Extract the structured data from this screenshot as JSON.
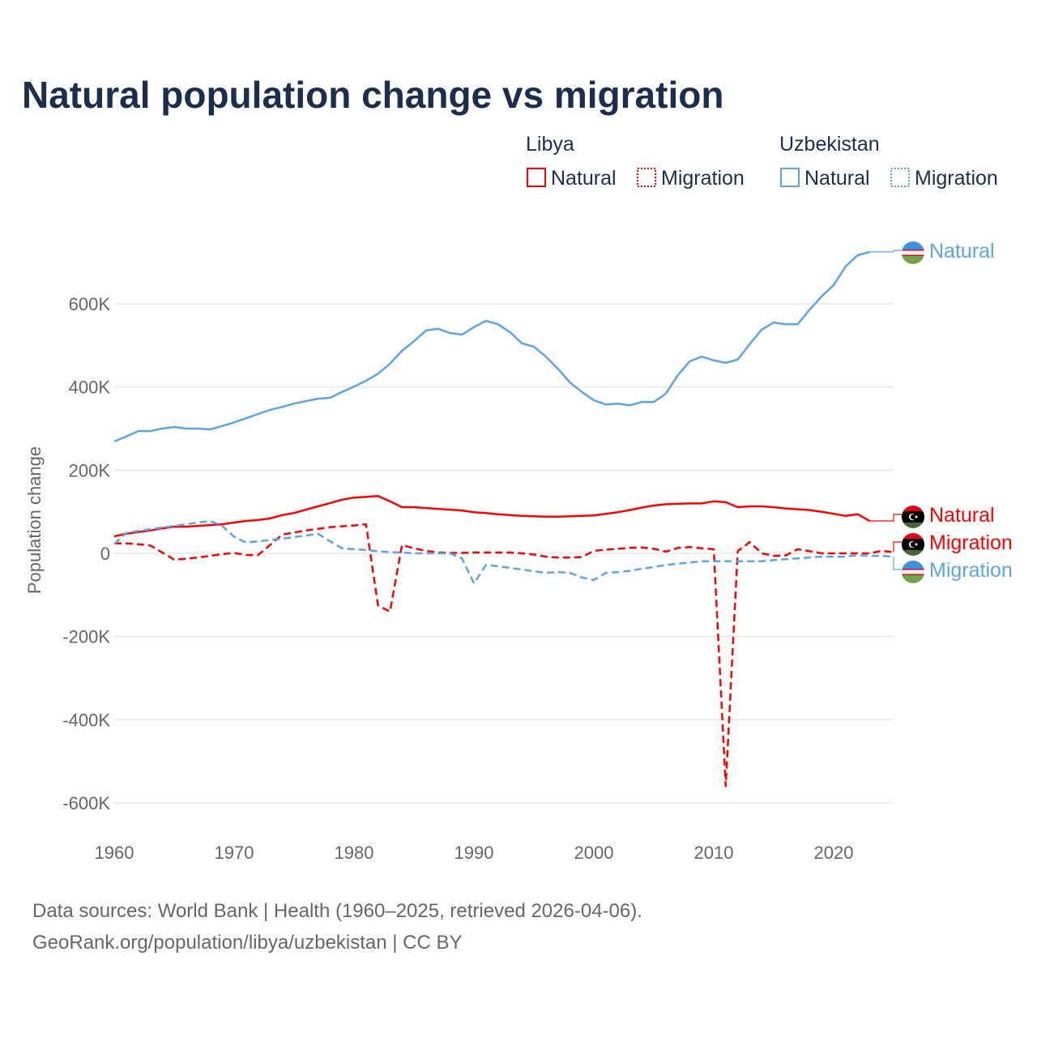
{
  "chart_data": {
    "type": "line",
    "title": "Natural population change vs migration",
    "xlabel": "",
    "ylabel": "Population change",
    "xlim": [
      1960,
      2025
    ],
    "ylim": [
      -650000,
      750000
    ],
    "x_ticks": [
      "1960",
      "1970",
      "1980",
      "1990",
      "2000",
      "2010",
      "2020"
    ],
    "y_ticks": [
      {
        "v": 600,
        "label": "600K"
      },
      {
        "v": 400,
        "label": "400K"
      },
      {
        "v": 200,
        "label": "200K"
      },
      {
        "v": 0,
        "label": "0"
      },
      {
        "v": -200,
        "label": "-200K"
      },
      {
        "v": -400,
        "label": "-400K"
      },
      {
        "v": -600,
        "label": "-600K"
      }
    ],
    "units": "thousands",
    "grid": true,
    "legend": {
      "groups": [
        {
          "country": "Libya",
          "items": [
            "Natural",
            "Migration"
          ]
        },
        {
          "country": "Uzbekistan",
          "items": [
            "Natural",
            "Migration"
          ]
        }
      ],
      "placement": "top-right"
    },
    "series": [
      {
        "name": "Uzbekistan Natural",
        "label": "Natural",
        "color": "#5ba4e8",
        "dash": false,
        "start": 1960,
        "values": [
          269,
          281,
          294,
          294,
          300,
          304,
          300,
          300,
          298,
          306,
          315,
          325,
          335,
          345,
          352,
          360,
          366,
          372,
          374,
          388,
          401,
          415,
          432,
          456,
          487,
          510,
          536,
          540,
          530,
          526,
          544,
          559,
          551,
          532,
          505,
          497,
          473,
          444,
          411,
          388,
          368,
          358,
          360,
          356,
          364,
          364,
          384,
          428,
          462,
          473,
          464,
          458,
          466,
          503,
          538,
          555,
          551,
          551,
          586,
          618,
          645,
          690,
          717,
          725
        ]
      },
      {
        "name": "Libya Natural",
        "label": "Natural",
        "color": "#ff0000",
        "dash": false,
        "start": 1960,
        "values": [
          41,
          47,
          51,
          55,
          60,
          64,
          64,
          66,
          68,
          70,
          74,
          78,
          80,
          84,
          92,
          97,
          105,
          113,
          121,
          129,
          134,
          136,
          138,
          125,
          111,
          111,
          109,
          107,
          105,
          103,
          99,
          97,
          94,
          92,
          90,
          89,
          88,
          88,
          89,
          90,
          91,
          95,
          99,
          104,
          110,
          115,
          118,
          119,
          120,
          120,
          125,
          123,
          111,
          113,
          113,
          111,
          108,
          106,
          104,
          100,
          95,
          90,
          94,
          78
        ]
      },
      {
        "name": "Libya Migration",
        "label": "Migration",
        "color": "#ff0000",
        "dash": true,
        "start": 1960,
        "values": [
          24,
          24,
          22,
          19,
          2,
          -15,
          -13,
          -10,
          -6,
          -2,
          1,
          -4,
          -4,
          20,
          45,
          50,
          55,
          59,
          63,
          65,
          67,
          70,
          -125,
          -140,
          20,
          12,
          6,
          2,
          1,
          1,
          2,
          2,
          2,
          2,
          0,
          -3,
          -8,
          -10,
          -10,
          -9,
          6,
          9,
          11,
          13,
          14,
          11,
          4,
          13,
          15,
          12,
          10,
          -560,
          5,
          27,
          0,
          -6,
          -5,
          10,
          5,
          0,
          0,
          0,
          0,
          0,
          6,
          3
        ]
      },
      {
        "name": "Uzbekistan Migration",
        "label": "Migration",
        "color": "#5ba4e8",
        "dash": true,
        "start": 1960,
        "values": [
          22,
          49,
          54,
          58,
          62,
          66,
          70,
          74,
          78,
          66,
          40,
          26,
          29,
          32,
          35,
          39,
          43,
          47,
          29,
          12,
          10,
          8,
          5,
          3,
          2,
          0,
          0,
          0,
          0,
          -12,
          -72,
          -28,
          -31,
          -35,
          -39,
          -43,
          -47,
          -45,
          -47,
          -58,
          -64,
          -47,
          -45,
          -42,
          -37,
          -33,
          -28,
          -25,
          -22,
          -19,
          -19,
          -19,
          -19,
          -19,
          -19,
          -16,
          -14,
          -12,
          -10,
          -8,
          -8,
          -8,
          -4,
          -6,
          -6,
          -8
        ]
      }
    ],
    "source_line1": "Data sources: World Bank | Health (1960–2025, retrieved 2026-04-06).",
    "source_line2": "GeoRank.org/population/libya/uzbekistan | CC BY"
  }
}
